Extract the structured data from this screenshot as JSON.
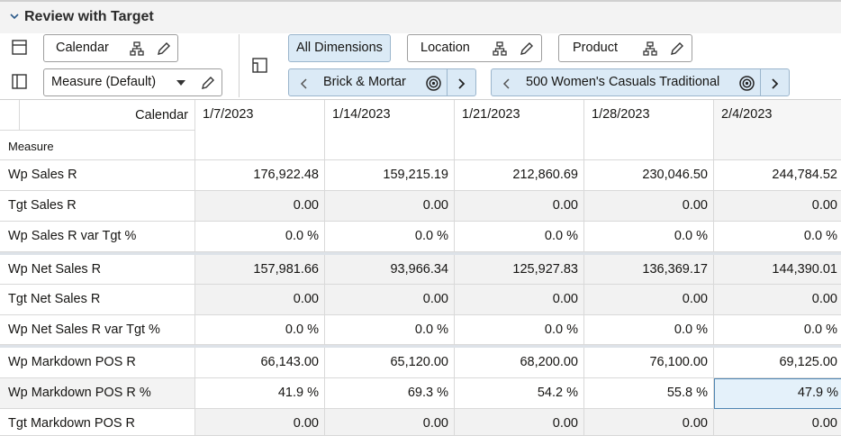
{
  "header": {
    "title": "Review with Target"
  },
  "toolbar": {
    "calendar": "Calendar",
    "measure": "Measure (Default)",
    "all_dimensions": "All Dimensions",
    "location": "Location",
    "product": "Product",
    "location_member": "Brick & Mortar",
    "product_member": "500 Women's Casuals Traditional"
  },
  "table": {
    "corner_top": "Calendar",
    "corner_bottom": "Measure",
    "columns": [
      "1/7/2023",
      "1/14/2023",
      "1/21/2023",
      "1/28/2023",
      "2/4/2023"
    ],
    "rows": [
      {
        "label": "Wp Sales R",
        "values": [
          "176,922.48",
          "159,215.19",
          "212,860.69",
          "230,046.50",
          "244,784.52"
        ]
      },
      {
        "label": "Tgt Sales R",
        "values": [
          "0.00",
          "0.00",
          "0.00",
          "0.00",
          "0.00"
        ]
      },
      {
        "label": "Wp Sales R var Tgt %",
        "values": [
          "0.0 %",
          "0.0 %",
          "0.0 %",
          "0.0 %",
          "0.0 %"
        ]
      },
      {
        "label": "Wp Net Sales R",
        "values": [
          "157,981.66",
          "93,966.34",
          "125,927.83",
          "136,369.17",
          "144,390.01"
        ]
      },
      {
        "label": "Tgt Net Sales R",
        "values": [
          "0.00",
          "0.00",
          "0.00",
          "0.00",
          "0.00"
        ]
      },
      {
        "label": "Wp Net Sales R var Tgt %",
        "values": [
          "0.0 %",
          "0.0 %",
          "0.0 %",
          "0.0 %",
          "0.0 %"
        ]
      },
      {
        "label": "Wp Markdown POS R",
        "values": [
          "66,143.00",
          "65,120.00",
          "68,200.00",
          "76,100.00",
          "69,125.00"
        ]
      },
      {
        "label": "Wp Markdown POS R %",
        "values": [
          "41.9 %",
          "69.3 %",
          "54.2 %",
          "55.8 %",
          "47.9 %"
        ]
      },
      {
        "label": "Tgt Markdown POS R",
        "values": [
          "0.00",
          "0.00",
          "0.00",
          "0.00",
          "0.00"
        ]
      }
    ]
  }
}
